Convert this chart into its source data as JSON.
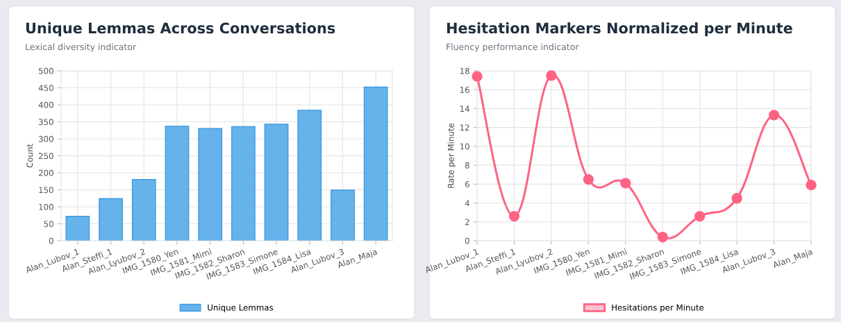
{
  "chart_data": [
    {
      "type": "bar",
      "title": "Unique Lemmas Across Conversations",
      "subtitle": "Lexical diversity indicator",
      "ylabel": "Count",
      "categories": [
        "Alan_Lubov_1",
        "Alan_Steffi_1",
        "Alan_Lyubov_2",
        "IMG_1580_Yen",
        "IMG_1581_Mimi",
        "IMG_1582_Sharon",
        "IMG_1583_Simone",
        "IMG_1584_Lisa",
        "Alan_Lubov_3",
        "Alan_Maja"
      ],
      "series": [
        {
          "name": "Unique Lemmas",
          "color": "#66b2ea",
          "values": [
            72,
            124,
            180,
            337,
            330,
            336,
            343,
            384,
            149,
            452
          ]
        }
      ],
      "ylim": [
        0,
        500
      ],
      "yticks": [
        0,
        50,
        100,
        150,
        200,
        250,
        300,
        350,
        400,
        450,
        500
      ],
      "grid": true,
      "legend": "bottom"
    },
    {
      "type": "line",
      "title": "Hesitation Markers Normalized per Minute",
      "subtitle": "Fluency performance indicator",
      "ylabel": "Rate per Minute",
      "categories": [
        "Alan_Lubov_1",
        "Alan_Steffi_1",
        "Alan_Lyubov_2",
        "IMG_1580_Yen",
        "IMG_1581_Mimi",
        "IMG_1582_Sharon",
        "IMG_1583_Simone",
        "IMG_1584_Lisa",
        "Alan_Lubov_3",
        "Alan_Maja"
      ],
      "series": [
        {
          "name": "Hesitations per Minute",
          "color": "#ff6384",
          "values": [
            17.4,
            2.6,
            17.5,
            6.5,
            6.1,
            0.4,
            2.6,
            4.5,
            13.3,
            5.9
          ]
        }
      ],
      "ylim": [
        0,
        18
      ],
      "yticks": [
        0,
        2,
        4,
        6,
        8,
        10,
        12,
        14,
        16,
        18
      ],
      "grid": true,
      "legend": "bottom",
      "marker": "circle"
    }
  ]
}
